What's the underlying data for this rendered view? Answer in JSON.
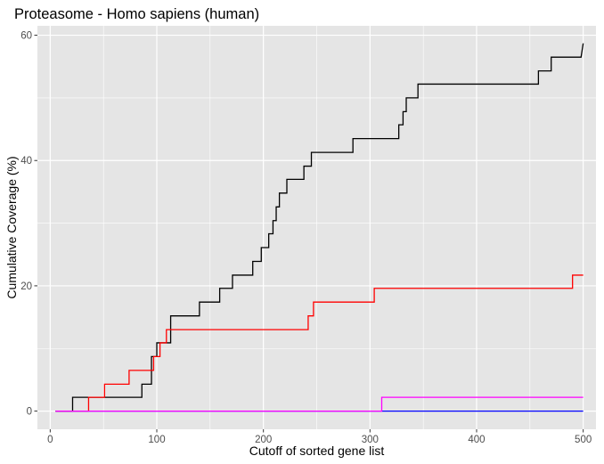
{
  "chart_data": {
    "type": "line",
    "title": "Proteasome - Homo sapiens (human)",
    "xlabel": "Cutoff of sorted gene list",
    "ylabel": "Cumulative Coverage (%)",
    "xlim": [
      -12,
      512
    ],
    "ylim": [
      -2.9,
      61.5
    ],
    "x_ticks": [
      0,
      100,
      200,
      300,
      400,
      500
    ],
    "y_ticks": [
      0,
      20,
      40,
      60
    ],
    "x_minor_ticks": [
      50,
      150,
      250,
      350,
      450
    ],
    "y_minor_ticks": [
      10,
      30,
      50
    ],
    "grid": true,
    "legend": "none",
    "background": "#E5E5E5",
    "grid_color": "#FFFFFF",
    "series": [
      {
        "color": "#000000",
        "step": true,
        "points": [
          [
            5,
            0
          ],
          [
            21,
            0
          ],
          [
            21,
            2.2
          ],
          [
            86,
            2.2
          ],
          [
            86,
            4.3
          ],
          [
            95,
            4.3
          ],
          [
            95,
            8.7
          ],
          [
            100,
            8.7
          ],
          [
            100,
            10.9
          ],
          [
            113,
            10.9
          ],
          [
            113,
            15.2
          ],
          [
            140,
            15.2
          ],
          [
            140,
            17.4
          ],
          [
            159,
            17.4
          ],
          [
            159,
            19.6
          ],
          [
            171,
            19.6
          ],
          [
            171,
            21.7
          ],
          [
            190,
            21.7
          ],
          [
            190,
            23.9
          ],
          [
            198,
            23.9
          ],
          [
            198,
            26.1
          ],
          [
            205,
            26.1
          ],
          [
            205,
            28.3
          ],
          [
            209,
            28.3
          ],
          [
            209,
            30.4
          ],
          [
            212,
            30.4
          ],
          [
            212,
            32.6
          ],
          [
            215,
            32.6
          ],
          [
            215,
            34.8
          ],
          [
            222,
            34.8
          ],
          [
            222,
            37.0
          ],
          [
            238,
            37.0
          ],
          [
            238,
            39.1
          ],
          [
            245,
            39.1
          ],
          [
            245,
            41.3
          ],
          [
            284,
            41.3
          ],
          [
            284,
            43.5
          ],
          [
            327,
            43.5
          ],
          [
            327,
            45.7
          ],
          [
            331,
            45.7
          ],
          [
            331,
            47.8
          ],
          [
            334,
            47.8
          ],
          [
            334,
            50.0
          ],
          [
            345,
            50.0
          ],
          [
            345,
            52.2
          ],
          [
            458,
            52.2
          ],
          [
            458,
            54.3
          ],
          [
            470,
            54.3
          ],
          [
            470,
            56.5
          ],
          [
            498,
            56.5
          ],
          [
            500,
            58.7
          ]
        ]
      },
      {
        "color": "#FF0000",
        "step": true,
        "points": [
          [
            5,
            0
          ],
          [
            36,
            0
          ],
          [
            36,
            2.2
          ],
          [
            51,
            2.2
          ],
          [
            51,
            4.3
          ],
          [
            74,
            4.3
          ],
          [
            74,
            6.5
          ],
          [
            97,
            6.5
          ],
          [
            97,
            8.7
          ],
          [
            103,
            8.7
          ],
          [
            103,
            10.9
          ],
          [
            109,
            10.9
          ],
          [
            109,
            13.0
          ],
          [
            242,
            13.0
          ],
          [
            242,
            15.2
          ],
          [
            247,
            15.2
          ],
          [
            247,
            17.4
          ],
          [
            304,
            17.4
          ],
          [
            304,
            19.6
          ],
          [
            490,
            19.6
          ],
          [
            490,
            21.7
          ],
          [
            500,
            21.7
          ]
        ]
      },
      {
        "color": "#0000FF",
        "step": true,
        "points": [
          [
            5,
            0
          ],
          [
            500,
            0
          ]
        ]
      },
      {
        "color": "#FF00FF",
        "step": true,
        "points": [
          [
            5,
            0
          ],
          [
            311,
            0
          ],
          [
            311,
            2.2
          ],
          [
            500,
            2.2
          ]
        ]
      }
    ]
  }
}
